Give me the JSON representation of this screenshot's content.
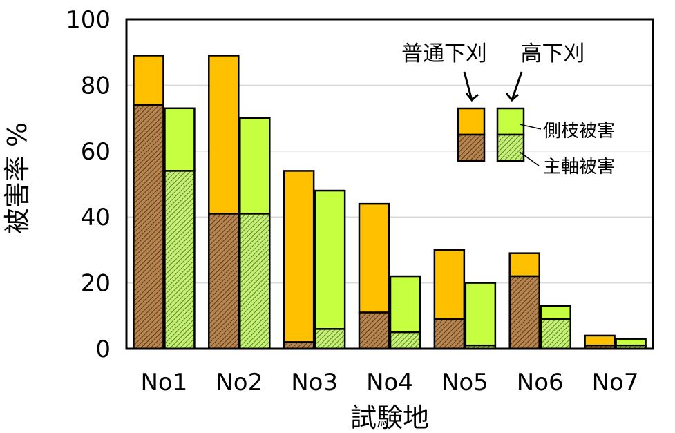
{
  "chart_data": {
    "type": "bar",
    "stacked": true,
    "grouped": true,
    "categories": [
      "No1",
      "No2",
      "No3",
      "No4",
      "No5",
      "No6",
      "No7"
    ],
    "series": [
      {
        "name": "普通下刈",
        "color": "#ffc000",
        "lower_color": "#9c6a36",
        "total": [
          89,
          89,
          54,
          44,
          30,
          29,
          4
        ],
        "主軸被害": [
          74,
          41,
          2,
          11,
          9,
          22,
          1
        ]
      },
      {
        "name": "高下刈",
        "color": "#c5ff3f",
        "lower_color": "#7fc03c",
        "total": [
          73,
          70,
          48,
          22,
          20,
          13,
          3
        ],
        "主軸被害": [
          54,
          41,
          6,
          5,
          1,
          9,
          1
        ]
      }
    ],
    "xlabel": "試験地",
    "ylabel": "被害率 %",
    "ylim": [
      0,
      100
    ],
    "yticks": [
      "0",
      "20",
      "40",
      "60",
      "80",
      "100"
    ],
    "grid": true,
    "legend": {
      "position": "top-right",
      "groups": [
        "普通下刈",
        "高下刈"
      ],
      "parts": [
        "側枝被害",
        "主軸被害"
      ]
    }
  }
}
